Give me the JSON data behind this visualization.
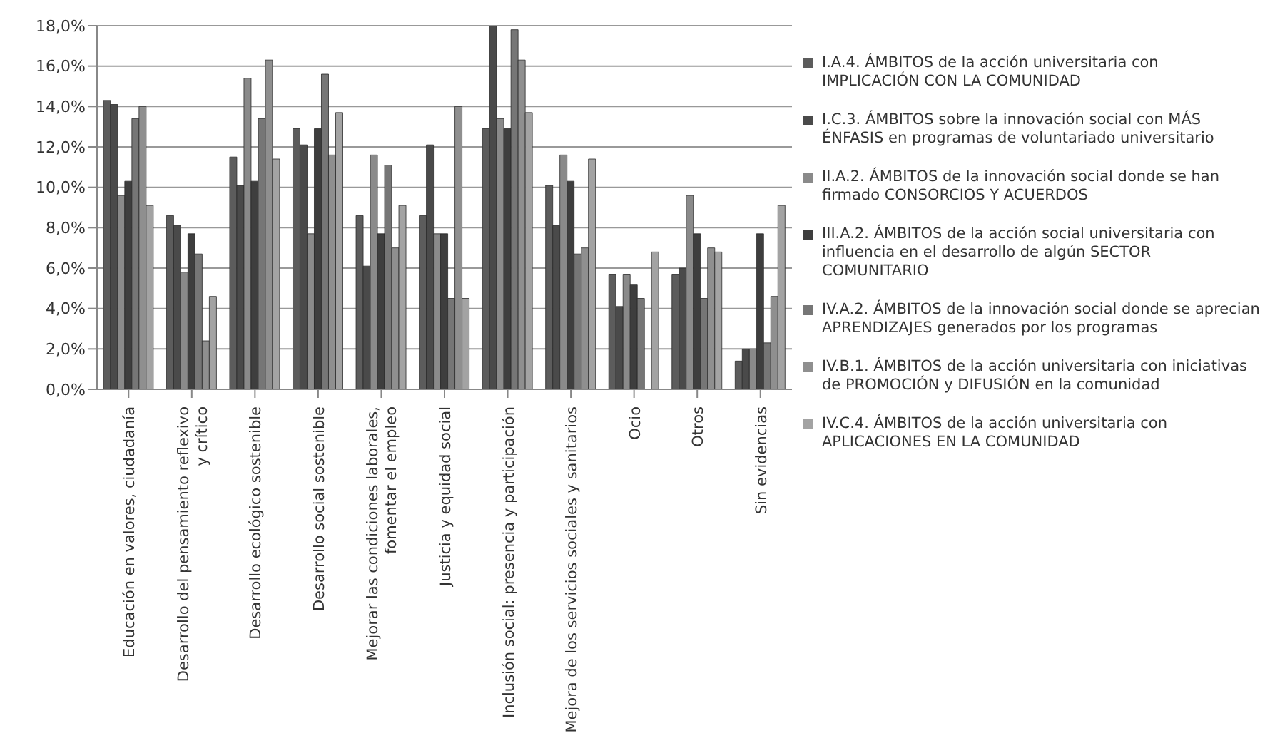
{
  "chart_data": {
    "type": "bar",
    "categories": [
      "Educación en valores, ciudadanía",
      "Desarrollo del pensamiento reflexivo\ny crítico",
      "Desarrollo ecológico sostenible",
      "Desarrollo social sostenible",
      "Mejorar las condiciones laborales,\nfomentar el empleo",
      "Justicia y equidad social",
      "Inclusión social: presencia y participación",
      "Mejora de los servicios sociales y sanitarios",
      "Ocio",
      "Otros",
      "Sin evidencias"
    ],
    "series": [
      {
        "name": "I.A.4. ÁMBITOS de la acción universitaria con IMPLICACIÓN CON LA COMUNIDAD",
        "color": "#5c5c5c",
        "values": [
          14.3,
          8.6,
          11.5,
          12.9,
          8.6,
          8.6,
          12.9,
          10.1,
          5.7,
          5.7,
          1.4
        ]
      },
      {
        "name": "I.C.3. ÁMBITOS sobre la innovación social con MÁS ÉNFASIS en programas de voluntariado universitario",
        "color": "#4a4a4a",
        "values": [
          14.1,
          8.1,
          10.1,
          12.1,
          6.1,
          12.1,
          18.0,
          8.1,
          4.1,
          6.0,
          2.0
        ]
      },
      {
        "name": "II.A.2. ÁMBITOS de la innovación social donde se han firmado CONSORCIOS Y ACUERDOS",
        "color": "#8a8a8a",
        "values": [
          9.6,
          5.8,
          15.4,
          7.7,
          11.6,
          7.7,
          13.4,
          11.6,
          5.7,
          9.6,
          2.0
        ]
      },
      {
        "name": "III.A.2. ÁMBITOS de la acción social universitaria con influencia en el desarrollo de algún SECTOR COMUNITARIO",
        "color": "#3e3e3e",
        "values": [
          10.3,
          7.7,
          10.3,
          12.9,
          7.7,
          7.7,
          12.9,
          10.3,
          5.2,
          7.7,
          7.7
        ]
      },
      {
        "name": "IV.A.2. ÁMBITOS de la innovación social donde se aprecian APRENDIZAJES generados por los programas",
        "color": "#767676",
        "values": [
          13.4,
          6.7,
          13.4,
          15.6,
          11.1,
          4.5,
          17.8,
          6.7,
          4.5,
          4.5,
          2.3
        ]
      },
      {
        "name": "IV.B.1. ÁMBITOS de la acción universitaria con iniciativas de PROMOCIÓN y DIFUSIÓN en la comunidad",
        "color": "#8f8f8f",
        "values": [
          14.0,
          2.4,
          16.3,
          11.6,
          7.0,
          14.0,
          16.3,
          7.0,
          0,
          7.0,
          4.6
        ]
      },
      {
        "name": "IV.C.4. ÁMBITOS de la acción universitaria con APLICACIONES EN LA COMUNIDAD",
        "color": "#a3a3a3",
        "values": [
          9.1,
          4.6,
          11.4,
          13.7,
          9.1,
          4.5,
          13.7,
          11.4,
          6.8,
          6.8,
          9.1
        ]
      }
    ],
    "ylim": [
      0,
      18
    ],
    "yticks": [
      {
        "value": 0,
        "label": "0,0%"
      },
      {
        "value": 2,
        "label": "2,0%"
      },
      {
        "value": 4,
        "label": "4,0%"
      },
      {
        "value": 6,
        "label": "6,0%"
      },
      {
        "value": 8,
        "label": "8,0%"
      },
      {
        "value": 10,
        "label": "10,0%"
      },
      {
        "value": 12,
        "label": "12,0%"
      },
      {
        "value": 14,
        "label": "14,0%"
      },
      {
        "value": 16,
        "label": "16,0%"
      },
      {
        "value": 18,
        "label": "18,0%"
      }
    ],
    "grid": "y",
    "legend": "right"
  }
}
